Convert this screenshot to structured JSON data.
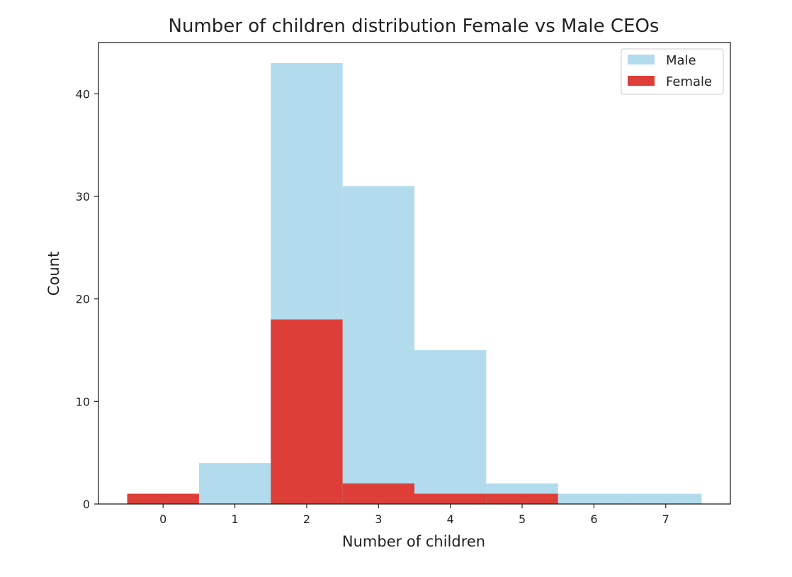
{
  "chart_data": {
    "type": "bar",
    "title": "Number of children distribution Female vs Male CEOs",
    "xlabel": "Number of children",
    "ylabel": "Count",
    "categories": [
      "0",
      "1",
      "2",
      "3",
      "4",
      "5",
      "6",
      "7"
    ],
    "x": [
      0,
      1,
      2,
      3,
      4,
      5,
      6,
      7
    ],
    "xticks": [
      "0",
      "1",
      "2",
      "3",
      "4",
      "5",
      "6",
      "7"
    ],
    "yticks": [
      "0",
      "10",
      "20",
      "30",
      "40"
    ],
    "xlim": [
      -0.9,
      7.9
    ],
    "ylim": [
      0,
      45
    ],
    "series": [
      {
        "name": "Male",
        "color": "#b3dbee",
        "values": [
          0,
          4,
          43,
          31,
          15,
          2,
          1,
          1
        ]
      },
      {
        "name": "Female",
        "color": "#dd3f38",
        "values": [
          1,
          0,
          18,
          2,
          1,
          1,
          0,
          0
        ]
      }
    ],
    "legend": {
      "position": "top-right",
      "entries": [
        "Male",
        "Female"
      ]
    },
    "grid": false
  }
}
